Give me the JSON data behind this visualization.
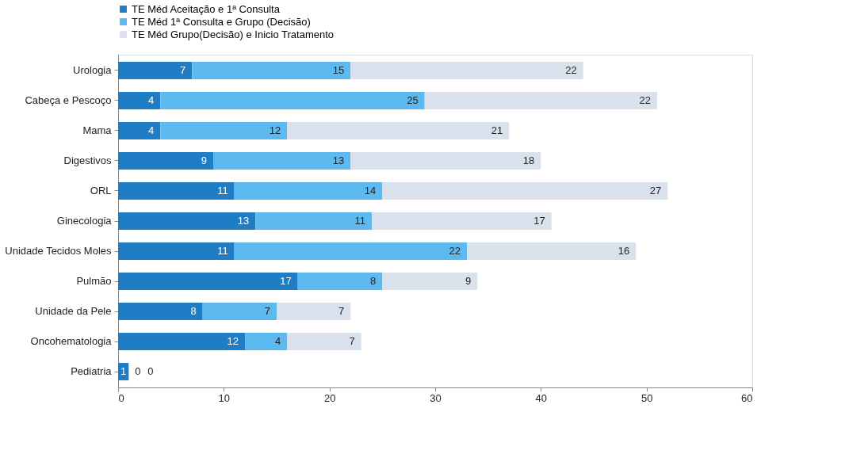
{
  "chart_data": {
    "type": "bar",
    "orientation": "horizontal",
    "stacked": true,
    "data_labels": true,
    "legend": "top",
    "grid": false,
    "categories": [
      "Urologia",
      "Cabeça e Pescoço",
      "Mama",
      "Digestivos",
      "ORL",
      "Ginecologia",
      "Unidade Tecidos Moles",
      "Pulmão",
      "Unidade da Pele",
      "Oncohematologia",
      "Pediatria"
    ],
    "series": [
      {
        "name": "TE Méd Aceitação e 1ª Consulta",
        "color": "#1f7dc6",
        "values": [
          7,
          4,
          4,
          9,
          11,
          13,
          11,
          17,
          8,
          12,
          1
        ]
      },
      {
        "name": "TE Méd 1ª Consulta e Grupo (Decisão)",
        "color": "#5cbaf0",
        "values": [
          15,
          25,
          12,
          13,
          14,
          11,
          22,
          8,
          7,
          4,
          0
        ]
      },
      {
        "name": "TE Méd Grupo(Decisão) e Inicio Tratamento",
        "color": "#d9e2ec",
        "values": [
          22,
          22,
          21,
          18,
          27,
          17,
          16,
          9,
          7,
          7,
          0
        ]
      }
    ],
    "xlim": [
      0,
      60
    ],
    "xticks": [
      0,
      10,
      20,
      30,
      40,
      50,
      60
    ]
  }
}
